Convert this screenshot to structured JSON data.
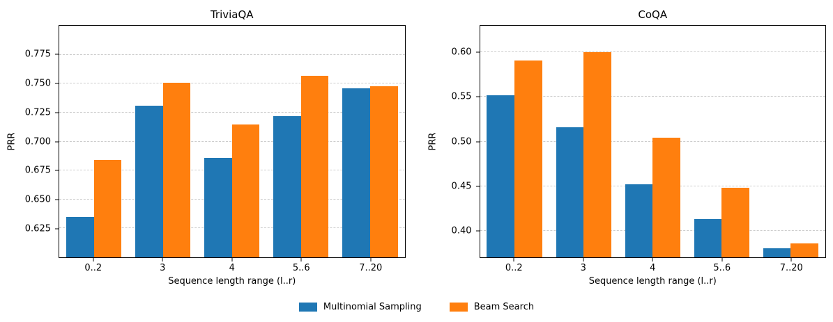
{
  "legend": {
    "position": "bottom-center",
    "entries": [
      {
        "label": "Multinomial Sampling",
        "color": "#1f77b4"
      },
      {
        "label": "Beam Search",
        "color": "#ff7f0e"
      }
    ]
  },
  "chart_data": [
    {
      "type": "bar",
      "title": "TriviaQA",
      "xlabel": "Sequence length range (l..r)",
      "ylabel": "PRR",
      "categories": [
        "0..2",
        "3",
        "4",
        "5..6",
        "7..20"
      ],
      "series": [
        {
          "name": "Multinomial Sampling",
          "color": "#1f77b4",
          "values": [
            0.635,
            0.731,
            0.686,
            0.722,
            0.746
          ]
        },
        {
          "name": "Beam Search",
          "color": "#ff7f0e",
          "values": [
            0.684,
            0.751,
            0.715,
            0.757,
            0.748
          ]
        }
      ],
      "ylim": [
        0.6,
        0.8
      ],
      "yticks": [
        0.625,
        0.65,
        0.675,
        0.7,
        0.725,
        0.75,
        0.775
      ],
      "ytick_labels": [
        "0.625",
        "0.650",
        "0.675",
        "0.700",
        "0.725",
        "0.750",
        "0.775"
      ],
      "grid": {
        "show": true,
        "style": "dashed",
        "color": "#cccccc"
      },
      "legend_position": "figure-bottom"
    },
    {
      "type": "bar",
      "title": "CoQA",
      "xlabel": "Sequence length range (l..r)",
      "ylabel": "PRR",
      "categories": [
        "0..2",
        "3",
        "4",
        "5..6",
        "7..20"
      ],
      "series": [
        {
          "name": "Multinomial Sampling",
          "color": "#1f77b4",
          "values": [
            0.552,
            0.516,
            0.452,
            0.413,
            0.38
          ]
        },
        {
          "name": "Beam Search",
          "color": "#ff7f0e",
          "values": [
            0.591,
            0.6,
            0.504,
            0.448,
            0.386
          ]
        }
      ],
      "ylim": [
        0.37,
        0.63
      ],
      "yticks": [
        0.4,
        0.45,
        0.5,
        0.55,
        0.6
      ],
      "ytick_labels": [
        "0.40",
        "0.45",
        "0.50",
        "0.55",
        "0.60"
      ],
      "grid": {
        "show": true,
        "style": "dashed",
        "color": "#cccccc"
      },
      "legend_position": "figure-bottom"
    }
  ]
}
